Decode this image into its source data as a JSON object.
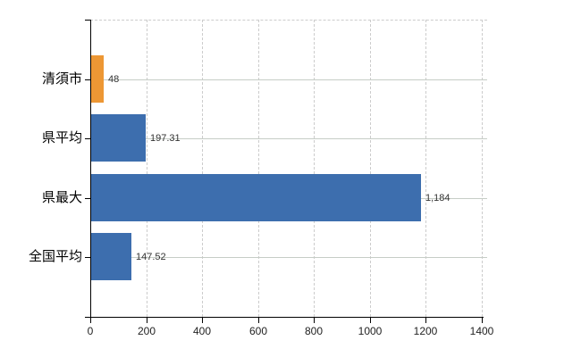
{
  "chart_data": {
    "type": "bar",
    "orientation": "horizontal",
    "title": "",
    "categories": [
      "清須市",
      "県平均",
      "県最大",
      "全国平均"
    ],
    "values": [
      48,
      197.31,
      1184,
      147.52
    ],
    "value_labels": [
      "48",
      "197.31",
      "1,184",
      "147.52"
    ],
    "bar_colors": [
      "#ED9734",
      "#3D6EAE",
      "#3D6EAE",
      "#3D6EAE"
    ],
    "highlight_color": "#ED9734",
    "default_bar_color": "#3D6EAE",
    "xlim": [
      0,
      1400
    ],
    "x_ticks": [
      0,
      200,
      400,
      600,
      800,
      1000,
      1200,
      1400
    ],
    "x_tick_labels": [
      "0",
      "200",
      "400",
      "600",
      "800",
      "1000",
      "1200",
      "1400"
    ],
    "grid": true,
    "legend": false
  },
  "colors": {
    "background": "#ffffff",
    "axis": "#000000",
    "grid_vertical": "#cccccc",
    "grid_horizontal": "#c6cdc6",
    "value_label": "#333333",
    "category_label": "#000000",
    "tick_label": "#222222"
  }
}
